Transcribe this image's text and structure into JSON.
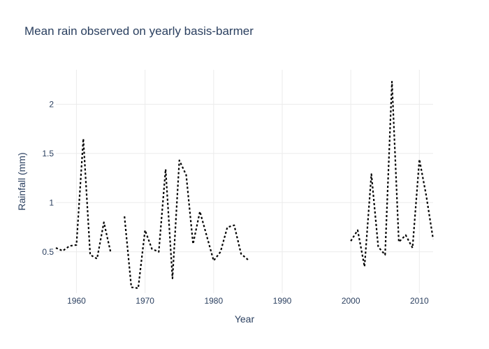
{
  "chart_data": {
    "type": "line",
    "title": "Mean rain observed on yearly basis-barmer",
    "xlabel": "Year",
    "ylabel": "Rainfall (mm)",
    "xlim": [
      1957,
      2012
    ],
    "ylim": [
      0.08,
      2.35
    ],
    "xticks": [
      1960,
      1970,
      1980,
      1990,
      2000,
      2010
    ],
    "xtick_labels": [
      "1960",
      "1970",
      "1980",
      "1990",
      "2000",
      "2010"
    ],
    "yticks": [
      0.5,
      1,
      1.5,
      2
    ],
    "ytick_labels": [
      "0.5",
      "1",
      "1.5",
      "2"
    ],
    "grid": true,
    "legend": "none",
    "line_style": "dotted",
    "line_color": "#000000",
    "series": [
      {
        "x": [
          1957,
          1958,
          1959,
          1960,
          1961,
          1962,
          1963,
          1964,
          1965,
          1966,
          1967,
          1968,
          1969,
          1970,
          1971,
          1972,
          1973,
          1974,
          1975,
          1976,
          1977,
          1978,
          1979,
          1980,
          1981,
          1982,
          1983,
          1984,
          1985,
          2000,
          2001,
          2002,
          2003,
          2004,
          2005,
          2006,
          2007,
          2008,
          2009,
          2010,
          2011,
          2012
        ],
        "y": [
          0.54,
          0.51,
          0.56,
          0.57,
          1.65,
          0.47,
          0.43,
          0.8,
          0.49,
          null,
          0.86,
          0.14,
          0.13,
          0.72,
          0.53,
          0.5,
          1.34,
          0.23,
          1.43,
          1.28,
          0.58,
          0.91,
          0.66,
          0.41,
          0.5,
          0.75,
          0.77,
          0.48,
          0.42,
          0.61,
          0.72,
          0.35,
          1.29,
          0.55,
          0.47,
          2.23,
          0.6,
          0.67,
          0.54,
          1.44,
          1.07,
          0.63
        ]
      }
    ]
  }
}
